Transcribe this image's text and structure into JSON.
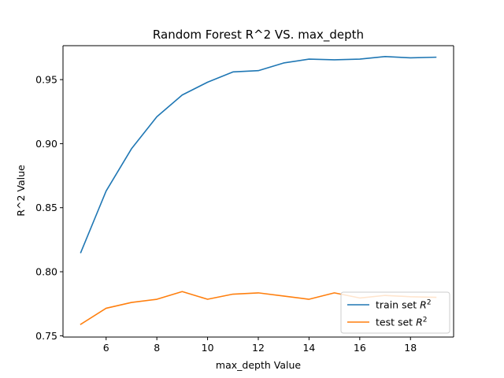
{
  "chart_data": {
    "type": "line",
    "title": "Random Forest R^2 VS. max_depth",
    "xlabel": "max_depth Value",
    "ylabel": "R^2 Value",
    "xlim": [
      4.3,
      19.7
    ],
    "ylim": [
      0.749,
      0.9765
    ],
    "xticks": [
      6,
      8,
      10,
      12,
      14,
      16,
      18
    ],
    "yticks": [
      0.75,
      0.8,
      0.85,
      0.9,
      0.95
    ],
    "ytick_labels": [
      "0.75",
      "0.80",
      "0.85",
      "0.90",
      "0.95"
    ],
    "grid": false,
    "legend_position": "lower-right",
    "x": [
      5,
      6,
      7,
      8,
      9,
      10,
      11,
      12,
      13,
      14,
      15,
      16,
      17,
      18,
      19
    ],
    "series": [
      {
        "name": "train set R^2",
        "legend_base": "train set ",
        "legend_sup": "2",
        "color": "#1f77b4",
        "values": [
          0.815,
          0.863,
          0.896,
          0.921,
          0.938,
          0.948,
          0.956,
          0.957,
          0.963,
          0.966,
          0.9655,
          0.966,
          0.968,
          0.967,
          0.9675
        ]
      },
      {
        "name": "test set R^2",
        "legend_base": "test set ",
        "legend_sup": "2",
        "color": "#ff7f0e",
        "values": [
          0.759,
          0.7715,
          0.776,
          0.7785,
          0.7845,
          0.7785,
          0.7825,
          0.7835,
          0.781,
          0.7785,
          0.7835,
          0.7795,
          0.7815,
          0.7805,
          0.78
        ]
      }
    ]
  }
}
